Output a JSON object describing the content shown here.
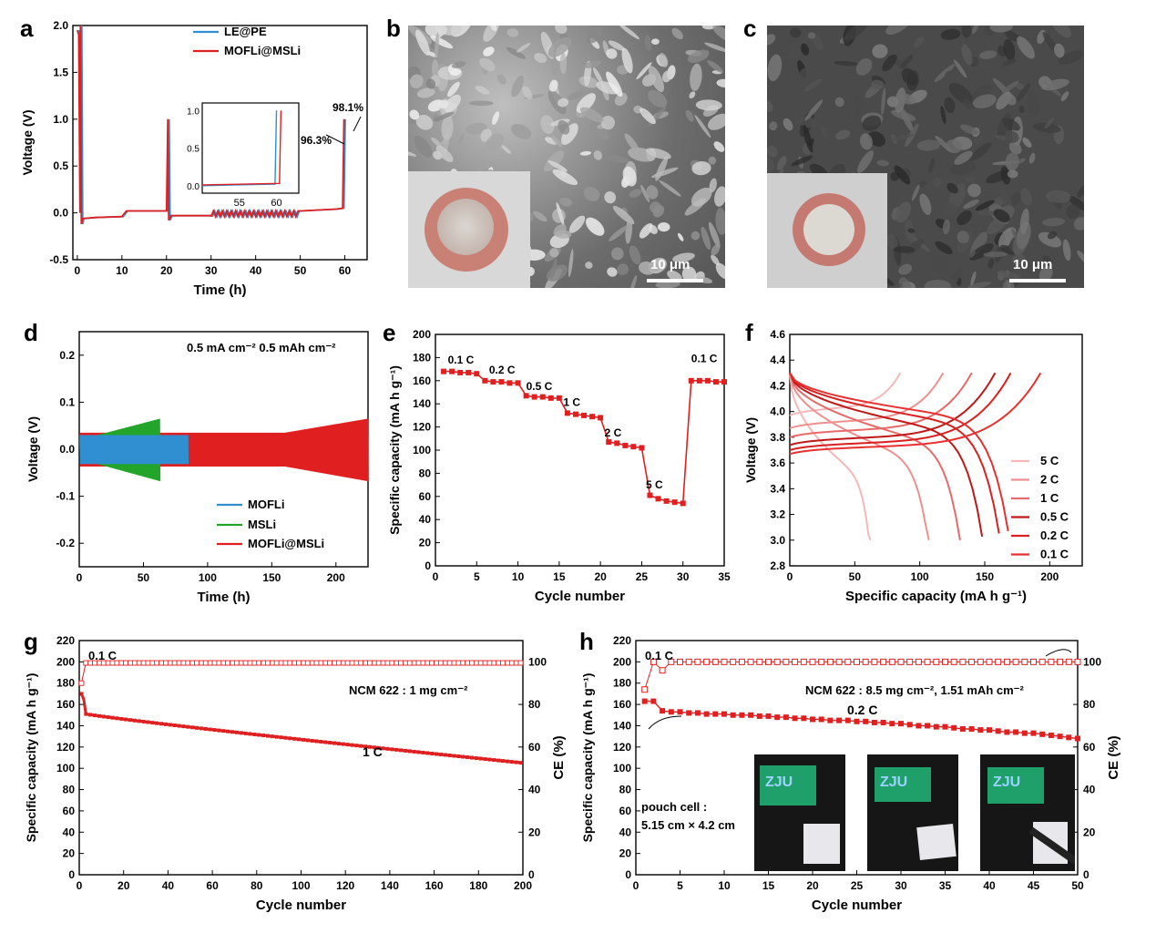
{
  "colors": {
    "red": "#e02020",
    "blue": "#2f8fd0",
    "green": "#22a52a"
  },
  "chart_data": [
    {
      "id": "a",
      "type": "line",
      "panel_label": "a",
      "xlabel": "Time (h)",
      "ylabel": "Voltage (V)",
      "xlim": [
        -1,
        65
      ],
      "ylim": [
        -0.5,
        2.0
      ],
      "xticks": [
        0,
        10,
        20,
        30,
        40,
        50,
        60
      ],
      "yticks": [
        -0.5,
        0.0,
        0.5,
        1.0,
        1.5,
        2.0
      ],
      "series": [
        {
          "name": "LE@PE",
          "color": "blue"
        },
        {
          "name": "MOFLi@MSLi",
          "color": "red"
        }
      ],
      "annotations": [
        "96.3%",
        "98.1%"
      ],
      "inset": {
        "xticks": [
          55,
          60
        ],
        "yticks": [
          0.0,
          0.5,
          1.0
        ],
        "xlim": [
          50,
          63
        ],
        "ylim": [
          -0.1,
          1.1
        ]
      }
    },
    {
      "id": "d",
      "type": "line",
      "panel_label": "d",
      "xlabel": "Time (h)",
      "ylabel": "Voltage (V)",
      "xlim": [
        0,
        225
      ],
      "ylim": [
        -0.25,
        0.25
      ],
      "xticks": [
        0,
        50,
        100,
        150,
        200
      ],
      "yticks": [
        -0.2,
        -0.1,
        0.0,
        0.1,
        0.2
      ],
      "annotation": "0.5 mA cm⁻²  0.5 mAh cm⁻²",
      "series": [
        {
          "name": "MOFLi",
          "color": "blue",
          "end_time": 85,
          "amplitude": 0.03
        },
        {
          "name": "MSLi",
          "color": "green",
          "end_time": 63,
          "amplitude": 0.065
        },
        {
          "name": "MOFLi@MSLi",
          "color": "red",
          "end_time": 225,
          "amplitude": 0.035
        }
      ]
    },
    {
      "id": "e",
      "type": "line",
      "panel_label": "e",
      "xlabel": "Cycle number",
      "ylabel": "Specific capacity (mA h g⁻¹)",
      "xlim": [
        0,
        35
      ],
      "ylim": [
        0,
        200
      ],
      "xticks": [
        0,
        5,
        10,
        15,
        20,
        25,
        30,
        35
      ],
      "yticks": [
        0,
        20,
        40,
        60,
        80,
        100,
        120,
        140,
        160,
        180,
        200
      ],
      "rate_labels": [
        "0.1 C",
        "0.2 C",
        "0.5 C",
        "1 C",
        "2 C",
        "5 C",
        "0.1 C"
      ],
      "x": [
        1,
        2,
        3,
        4,
        5,
        6,
        7,
        8,
        9,
        10,
        11,
        12,
        13,
        14,
        15,
        16,
        17,
        18,
        19,
        20,
        21,
        22,
        23,
        24,
        25,
        26,
        27,
        28,
        29,
        30,
        31,
        32,
        33,
        34,
        35
      ],
      "values": [
        168,
        168,
        167,
        167,
        166,
        160,
        159,
        159,
        158,
        158,
        147,
        146,
        146,
        145,
        145,
        132,
        131,
        130,
        129,
        128,
        107,
        106,
        104,
        103,
        102,
        61,
        58,
        56,
        55,
        54,
        160,
        160,
        160,
        159,
        159
      ]
    },
    {
      "id": "f",
      "type": "line",
      "panel_label": "f",
      "xlabel": "Specific capacity (mA h g⁻¹)",
      "ylabel": "Voltage (V)",
      "xlim": [
        0,
        225
      ],
      "ylim": [
        2.8,
        4.6
      ],
      "xticks": [
        0,
        50,
        100,
        150,
        200
      ],
      "yticks": [
        2.8,
        3.0,
        3.2,
        3.4,
        3.6,
        3.8,
        4.0,
        4.2,
        4.4,
        4.6
      ],
      "series": [
        {
          "name": "5 C",
          "charge_cap": 85,
          "discharge_cap": 62,
          "color": "#f5b8b8"
        },
        {
          "name": "2 C",
          "charge_cap": 118,
          "discharge_cap": 107,
          "color": "#ee9090"
        },
        {
          "name": "1 C",
          "charge_cap": 140,
          "discharge_cap": 131,
          "color": "#e86a6a"
        },
        {
          "name": "0.5 C",
          "charge_cap": 158,
          "discharge_cap": 148,
          "color": "#c01818"
        },
        {
          "name": "0.2 C",
          "charge_cap": 170,
          "discharge_cap": 161,
          "color": "#d82020"
        },
        {
          "name": "0.1 C",
          "charge_cap": 193,
          "discharge_cap": 168,
          "color": "#e83030"
        }
      ]
    },
    {
      "id": "g",
      "type": "scatter",
      "panel_label": "g",
      "xlabel": "Cycle number",
      "ylabel": "Specific capacity (mA h g⁻¹)",
      "y2label": "CE (%)",
      "xlim": [
        0,
        200
      ],
      "ylim": [
        0,
        220
      ],
      "y2lim": [
        0,
        110
      ],
      "xticks": [
        0,
        20,
        40,
        60,
        80,
        100,
        120,
        140,
        160,
        180,
        200
      ],
      "yticks": [
        0,
        20,
        40,
        60,
        80,
        100,
        120,
        140,
        160,
        180,
        200,
        220
      ],
      "y2ticks": [
        0,
        20,
        40,
        60,
        80,
        100
      ],
      "texts": [
        "0.1 C",
        "NCM 622 : 1 mg cm⁻²",
        "1 C"
      ],
      "capacity_start": 151,
      "capacity_end": 105,
      "ce": 99.5
    },
    {
      "id": "h",
      "type": "scatter",
      "panel_label": "h",
      "xlabel": "Cycle number",
      "ylabel": "Specific capacity (mA h g⁻¹)",
      "y2label": "CE (%)",
      "xlim": [
        0,
        50
      ],
      "ylim": [
        0,
        220
      ],
      "y2lim": [
        0,
        110
      ],
      "xticks": [
        0,
        5,
        10,
        15,
        20,
        25,
        30,
        35,
        40,
        45,
        50
      ],
      "yticks": [
        0,
        20,
        40,
        60,
        80,
        100,
        120,
        140,
        160,
        180,
        200,
        220
      ],
      "y2ticks": [
        0,
        20,
        40,
        60,
        80,
        100
      ],
      "texts": [
        "0.1 C",
        "NCM 622 : 8.5 mg cm⁻², 1.51 mAh cm⁻²",
        "0.2 C",
        "pouch cell :",
        "5.15 cm × 4.2 cm"
      ],
      "x": [
        1,
        2,
        3,
        4,
        5,
        6,
        7,
        8,
        9,
        10,
        11,
        12,
        13,
        14,
        15,
        16,
        17,
        18,
        19,
        20,
        21,
        22,
        23,
        24,
        25,
        26,
        27,
        28,
        29,
        30,
        31,
        32,
        33,
        34,
        35,
        36,
        37,
        38,
        39,
        40,
        41,
        42,
        43,
        44,
        45,
        46,
        47,
        48,
        49,
        50
      ],
      "capacity": [
        163,
        163,
        154,
        153,
        153,
        152,
        152,
        151,
        151,
        151,
        150,
        150,
        150,
        149,
        149,
        148,
        148,
        147,
        147,
        146,
        146,
        145,
        145,
        145,
        144,
        144,
        143,
        143,
        142,
        142,
        141,
        140,
        140,
        139,
        139,
        138,
        137,
        137,
        136,
        136,
        135,
        134,
        134,
        133,
        133,
        132,
        131,
        130,
        129,
        128
      ],
      "ce": [
        87,
        100,
        96,
        100,
        100,
        100,
        100,
        100,
        100,
        100,
        100,
        100,
        100,
        100,
        100,
        100,
        100,
        100,
        100,
        100,
        100,
        100,
        100,
        100,
        100,
        100,
        100,
        100,
        100,
        100,
        100,
        100,
        100,
        100,
        100,
        100,
        100,
        100,
        100,
        100,
        100,
        100,
        100,
        100,
        100,
        100,
        100,
        100,
        100,
        100
      ]
    }
  ],
  "images": [
    {
      "panel_label": "b",
      "scale_bar": "10 μm"
    },
    {
      "panel_label": "c",
      "scale_bar": "10 μm"
    }
  ],
  "pouch_photos": [
    {
      "screen_text": "ZJU"
    },
    {
      "screen_text": "ZJU"
    },
    {
      "screen_text": "ZJU"
    }
  ]
}
